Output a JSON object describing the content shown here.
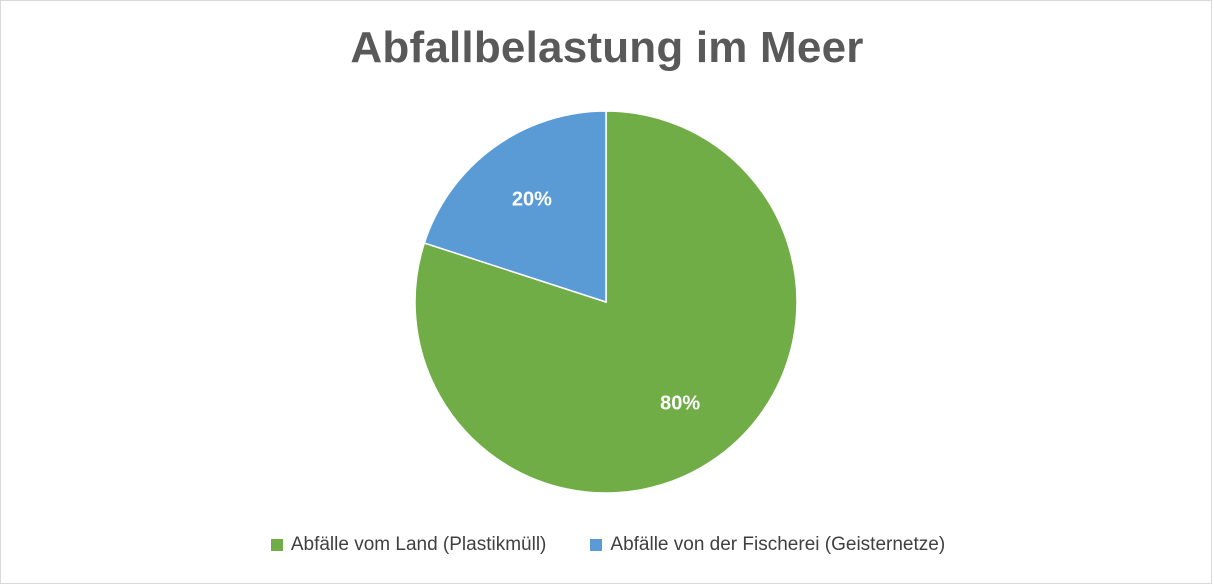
{
  "chart_data": {
    "type": "pie",
    "title": "Abfallbelastung im Meer",
    "categories": [
      "Abfälle vom Land (Plastikmüll)",
      "Abfälle von der Fischerei (Geisternetze)"
    ],
    "values": [
      80,
      20
    ],
    "data_labels": [
      "80%",
      "20%"
    ],
    "colors": [
      "#70ad47",
      "#5b9bd5"
    ],
    "legend_position": "bottom"
  }
}
